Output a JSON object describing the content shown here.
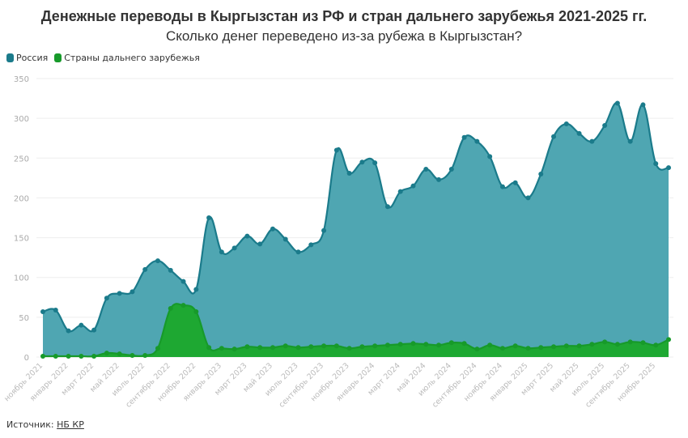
{
  "chart_data": {
    "type": "area",
    "title": "Денежные переводы в Кыргызстан из РФ и стран дальнего зарубежья 2021-2025 гг.",
    "subtitle": "Сколько денег переведено из-за рубежа в Кыргызстан?",
    "ylim": [
      0,
      350
    ],
    "yticks": [
      0,
      50,
      100,
      150,
      200,
      250,
      300,
      350
    ],
    "grid": true,
    "legend_position": "top-left",
    "x": [
      "2021-11",
      "2021-12",
      "2022-01",
      "2022-02",
      "2022-03",
      "2022-04",
      "2022-05",
      "2022-06",
      "2022-07",
      "2022-08",
      "2022-09",
      "2022-10",
      "2022-11",
      "2022-12",
      "2023-01",
      "2023-02",
      "2023-03",
      "2023-04",
      "2023-05",
      "2023-06",
      "2023-07",
      "2023-08",
      "2023-09",
      "2023-10",
      "2023-11",
      "2023-12",
      "2024-01",
      "2024-02",
      "2024-03",
      "2024-04",
      "2024-05",
      "2024-06",
      "2024-07",
      "2024-08",
      "2024-09",
      "2024-10",
      "2024-11",
      "2024-12",
      "2025-01",
      "2025-02",
      "2025-03",
      "2025-04",
      "2025-05",
      "2025-06",
      "2025-07",
      "2025-08",
      "2025-09",
      "2025-10",
      "2025-11",
      "2025-12"
    ],
    "xtick_labels": [
      "ноябрь 2021",
      "январь 2022",
      "март 2022",
      "май 2022",
      "июль 2022",
      "сентябрь 2022",
      "ноябрь 2022",
      "январь 2023",
      "март 2023",
      "май 2023",
      "июль 2023",
      "сентябрь 2023",
      "ноябрь 2023",
      "январь 2024",
      "март 2024",
      "май 2024",
      "июль 2024",
      "сентябрь 2024",
      "ноябрь 2024",
      "январь 2025",
      "март 2025",
      "май 2025",
      "июль 2025",
      "сентябрь 2025",
      "ноябрь 2025"
    ],
    "series": [
      {
        "name": "Россия",
        "color": "#1b7b8b",
        "fill": "#4ba4b0",
        "values": [
          57,
          59,
          33,
          40,
          34,
          74,
          80,
          82,
          110,
          121,
          109,
          95,
          85,
          175,
          132,
          137,
          152,
          142,
          161,
          148,
          132,
          141,
          159,
          260,
          231,
          245,
          244,
          189,
          208,
          215,
          236,
          223,
          236,
          276,
          271,
          252,
          214,
          219,
          200,
          230,
          277,
          293,
          281,
          271,
          291,
          319,
          271,
          317,
          243,
          238
        ]
      },
      {
        "name": "Страны дальнего зарубежья",
        "color": "#179a2a",
        "fill": "#1ea832",
        "values": [
          1,
          1,
          1,
          1,
          1,
          5,
          4,
          2,
          2,
          11,
          61,
          65,
          57,
          12,
          11,
          10,
          13,
          12,
          12,
          14,
          12,
          13,
          14,
          14,
          11,
          13,
          14,
          15,
          16,
          17,
          16,
          15,
          18,
          17,
          10,
          15,
          11,
          14,
          11,
          12,
          13,
          14,
          14,
          16,
          19,
          16,
          19,
          18,
          15,
          22
        ]
      }
    ]
  },
  "source": {
    "label": "Источник:",
    "link": "НБ КР"
  }
}
